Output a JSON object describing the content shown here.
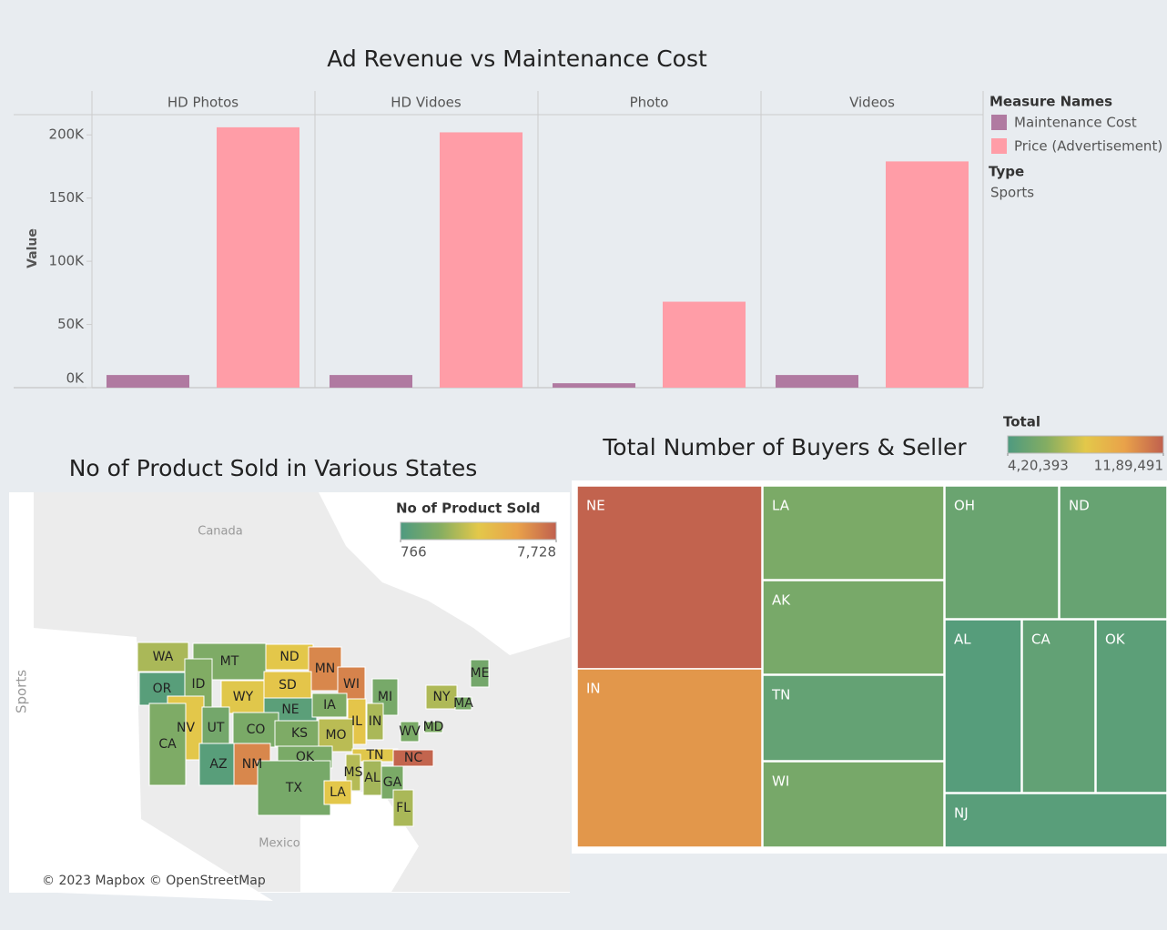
{
  "chart_data": [
    {
      "type": "bar",
      "title": "Ad Revenue vs Maintenance Cost",
      "y_label": "Value",
      "categories": [
        "HD Photos",
        "HD Vidoes",
        "Photo",
        "Videos"
      ],
      "series": [
        {
          "name": "Maintenance Cost",
          "color": "#b07aa1",
          "values": [
            10000,
            10000,
            3500,
            10000
          ]
        },
        {
          "name": "Price (Advertisement)",
          "color": "#ff9da7",
          "values": [
            206000,
            202000,
            68000,
            179000
          ]
        }
      ],
      "ylim": [
        0,
        216000
      ],
      "yticks": [
        {
          "value": 0,
          "label": "0K"
        },
        {
          "value": 50000,
          "label": "50K"
        },
        {
          "value": 100000,
          "label": "100K"
        },
        {
          "value": 150000,
          "label": "150K"
        },
        {
          "value": 200000,
          "label": "200K"
        }
      ],
      "legend_title": "Measure Names",
      "filter": {
        "label": "Type",
        "value": "Sports"
      }
    },
    {
      "type": "map",
      "title": "No of Product Sold in Various States",
      "row_label": "Sports",
      "annotations": [
        "Canada",
        "Mexico"
      ],
      "attribution": "© 2023 Mapbox © OpenStreetMap",
      "legend_title": "No of Product Sold",
      "colorscale": [
        "#4e9a80",
        "#84ad62",
        "#e3c84a",
        "#e9a24a",
        "#c0604e"
      ],
      "clim": [
        766,
        7728
      ],
      "cticks": [
        766,
        {
          "value": 7728,
          "label": "7,728"
        }
      ],
      "states": [
        "WA",
        "MT",
        "ND",
        "MN",
        "OR",
        "ID",
        "WY",
        "SD",
        "WI",
        "MI",
        "NY",
        "ME",
        "MA",
        "NE",
        "IA",
        "IL",
        "IN",
        "WV",
        "MD",
        "NV",
        "UT",
        "CO",
        "KS",
        "MO",
        "CA",
        "AZ",
        "NM",
        "OK",
        "TN",
        "NC",
        "TX",
        "MS",
        "AL",
        "GA",
        "LA",
        "FL"
      ],
      "values": [
        3200,
        2300,
        4300,
        6700,
        1100,
        2400,
        4200,
        4400,
        6800,
        2100,
        3300,
        2000,
        2200,
        1200,
        2300,
        4400,
        3200,
        2200,
        2300,
        4300,
        2000,
        2200,
        2300,
        3500,
        2300,
        1100,
        6700,
        2200,
        4200,
        7600,
        2100,
        3400,
        3100,
        2200,
        4300,
        3200
      ]
    },
    {
      "type": "treemap",
      "title": "Total Number of Buyers & Seller",
      "legend_title": "Total",
      "colorscale": [
        "#4e9a80",
        "#84ad62",
        "#e3c84a",
        "#e9a24a",
        "#c0604e"
      ],
      "clim": [
        420393,
        1189491
      ],
      "cticks": [
        {
          "value": 420393,
          "label": "4,20,393"
        },
        {
          "value": 1189491,
          "label": "11,89,491"
        }
      ],
      "categories": [
        "NE",
        "IN",
        "LA",
        "AK",
        "TN",
        "WI",
        "OH",
        "ND",
        "AL",
        "CA",
        "OK",
        "NJ"
      ],
      "values": [
        1180000,
        1030000,
        580000,
        570000,
        500000,
        565000,
        520000,
        510000,
        450000,
        490000,
        470000,
        460000
      ]
    }
  ]
}
